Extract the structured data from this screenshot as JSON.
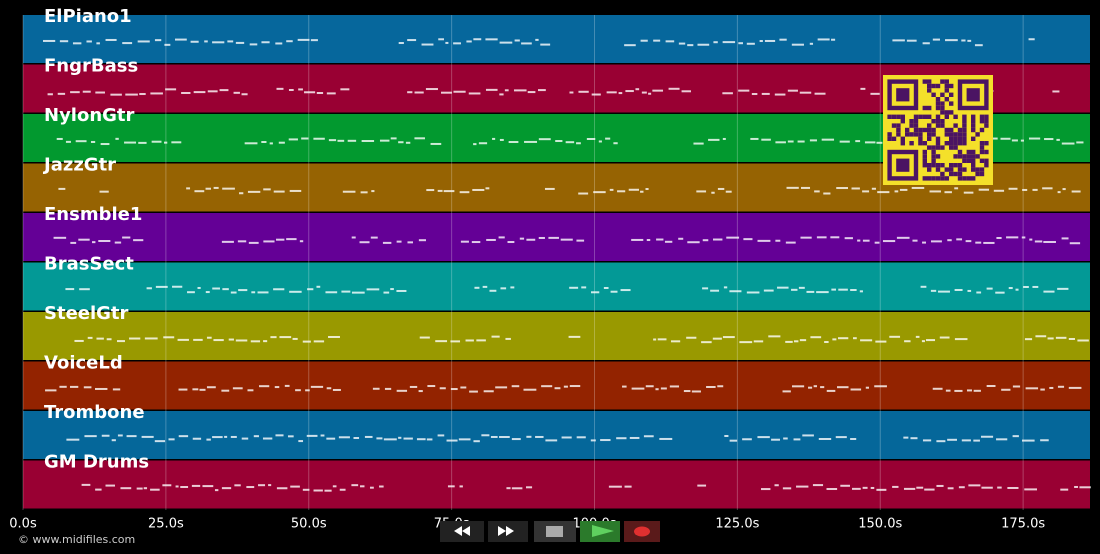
{
  "timeline": {
    "xlim": [
      0,
      186.7
    ],
    "xticks": [
      {
        "value": 0,
        "label": "0.0s"
      },
      {
        "value": 25,
        "label": "25.0s"
      },
      {
        "value": 50,
        "label": "50.0s"
      },
      {
        "value": 75,
        "label": "75.0s"
      },
      {
        "value": 100,
        "label": "100.0s"
      },
      {
        "value": 125,
        "label": "125.0s"
      },
      {
        "value": 150,
        "label": "150.0s"
      },
      {
        "value": 175,
        "label": "175.0s"
      }
    ],
    "tracks": [
      {
        "name": "ElPiano1",
        "color": "#06679c"
      },
      {
        "name": "FngrBass",
        "color": "#990033"
      },
      {
        "name": "NylonGtr",
        "color": "#02992f"
      },
      {
        "name": "JazzGtr",
        "color": "#966302"
      },
      {
        "name": "Ensmble1",
        "color": "#640096"
      },
      {
        "name": "BrasSect",
        "color": "#039996"
      },
      {
        "name": "SteelGtr",
        "color": "#999900"
      },
      {
        "name": "VoiceLd",
        "color": "#932300"
      },
      {
        "name": "Trombone",
        "color": "#05679a"
      },
      {
        "name": "GM Drums",
        "color": "#990033"
      }
    ]
  },
  "footer": {
    "copyright": "© www.midifiles.com"
  }
}
